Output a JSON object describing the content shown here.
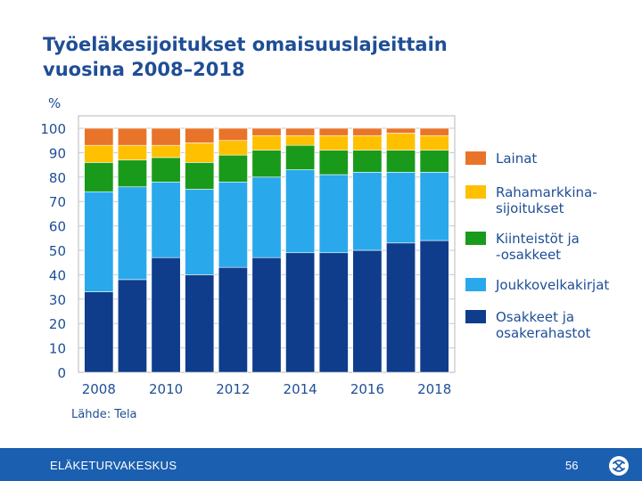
{
  "title": {
    "line1": "Työeläkesijoitukset omaisuuslajeittain",
    "line2": "vuosina 2008–2018"
  },
  "footer": {
    "brand": "ELÄKETURVAKESKUS",
    "page_number": "56",
    "logo_icon": "etk-logo-icon"
  },
  "chart_data": {
    "type": "bar",
    "stacked": true,
    "title": "Työeläkesijoitukset omaisuuslajeittain vuosina 2008–2018",
    "ylabel": "%",
    "xlabel": "",
    "ylim": [
      0,
      100
    ],
    "yticks": [
      "0",
      "10",
      "20",
      "30",
      "40",
      "50",
      "60",
      "70",
      "80",
      "90",
      "100"
    ],
    "categories": [
      "2008",
      "2009",
      "2010",
      "2011",
      "2012",
      "2013",
      "2014",
      "2015",
      "2016",
      "2017",
      "2018"
    ],
    "x_tick_labels": [
      "2008",
      "2010",
      "2012",
      "2014",
      "2016",
      "2018"
    ],
    "grid": true,
    "source": "Lähde: Tela",
    "series": [
      {
        "name": "Osakkeet ja osakerahastot",
        "color": "#0f3d8c",
        "values": [
          33,
          38,
          47,
          40,
          43,
          47,
          49,
          49,
          50,
          53,
          54
        ]
      },
      {
        "name": "Joukkovelkakirjat",
        "color": "#29a9ec",
        "values": [
          41,
          38,
          31,
          35,
          35,
          33,
          34,
          32,
          32,
          29,
          28
        ]
      },
      {
        "name": "Kiinteistöt ja -osakkeet",
        "color": "#1a9a1a",
        "values": [
          12,
          11,
          10,
          11,
          11,
          11,
          10,
          10,
          9,
          9,
          9
        ]
      },
      {
        "name": "Rahamarkkina-sijoitukset",
        "color": "#ffc000",
        "values": [
          7,
          6,
          5,
          8,
          6,
          6,
          4,
          6,
          6,
          7,
          6
        ]
      },
      {
        "name": "Lainat",
        "color": "#e8742a",
        "values": [
          7,
          7,
          7,
          6,
          5,
          3,
          3,
          3,
          3,
          2,
          3
        ]
      }
    ],
    "legend_order": [
      {
        "lines": [
          "Lainat"
        ],
        "color": "#e8742a"
      },
      {
        "lines": [
          "Rahamarkkina-",
          "sijoitukset"
        ],
        "color": "#ffc000"
      },
      {
        "lines": [
          "Kiinteistöt ja",
          "-osakkeet"
        ],
        "color": "#1a9a1a"
      },
      {
        "lines": [
          "Joukkovelkakirjat"
        ],
        "color": "#29a9ec"
      },
      {
        "lines": [
          "Osakkeet ja",
          "osakerahastot"
        ],
        "color": "#0f3d8c"
      }
    ],
    "legend_position": "right"
  }
}
